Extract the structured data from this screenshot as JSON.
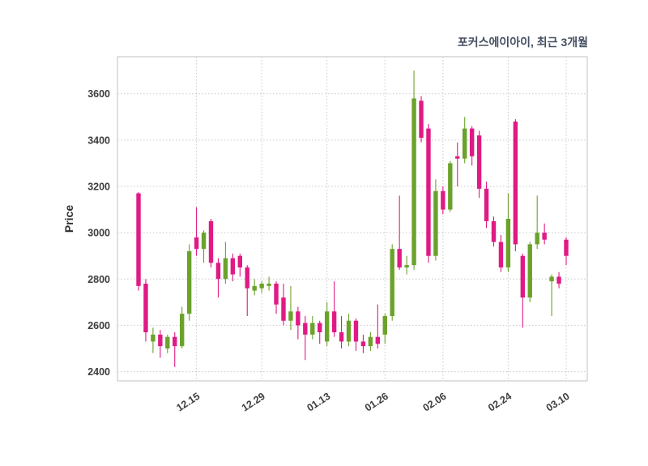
{
  "header": {
    "title": "포커스에이아이, 최근 3개월"
  },
  "chart_data": {
    "type": "candlestick",
    "title": "포커스에이아이, 최근 3개월",
    "xlabel": "",
    "ylabel": "Price",
    "ylim": [
      2360,
      3760
    ],
    "yticks": [
      2400,
      2600,
      2800,
      3000,
      3200,
      3400,
      3600
    ],
    "xtick_labels": [
      "12.15",
      "12.29",
      "01.13",
      "01.26",
      "02.06",
      "02.24",
      "03.10"
    ],
    "grid": true,
    "legend": "none",
    "colors": {
      "up": "#6ba22b",
      "down": "#e01a84",
      "grid": "#c9c9c9",
      "border": "#cccccc",
      "title": "#454f63",
      "tick": "#3d3d3d",
      "ylabel": "#2e2e2e",
      "background": "#ffffff"
    },
    "candles": [
      [
        "12.03",
        3170,
        3175,
        2750,
        2770
      ],
      [
        "12.04",
        2780,
        2800,
        2530,
        2570
      ],
      [
        "12.05",
        2530,
        2590,
        2480,
        2560
      ],
      [
        "12.08",
        2560,
        2580,
        2460,
        2510
      ],
      [
        "12.09",
        2500,
        2560,
        2480,
        2550
      ],
      [
        "12.10",
        2550,
        2570,
        2420,
        2510
      ],
      [
        "12.11",
        2510,
        2680,
        2500,
        2650
      ],
      [
        "12.12",
        2650,
        2950,
        2620,
        2920
      ],
      [
        "12.15",
        2980,
        3110,
        2900,
        2930
      ],
      [
        "12.16",
        2930,
        3010,
        2870,
        3000
      ],
      [
        "12.17",
        3050,
        3060,
        2850,
        2870
      ],
      [
        "12.18",
        2870,
        2890,
        2720,
        2800
      ],
      [
        "12.19",
        2800,
        2960,
        2780,
        2890
      ],
      [
        "12.22",
        2890,
        2910,
        2790,
        2820
      ],
      [
        "12.23",
        2900,
        2910,
        2810,
        2850
      ],
      [
        "12.24",
        2850,
        2860,
        2640,
        2760
      ],
      [
        "12.26",
        2750,
        2800,
        2730,
        2770
      ],
      [
        "12.29",
        2760,
        2790,
        2740,
        2780
      ],
      [
        "12.30",
        2770,
        2810,
        2750,
        2780
      ],
      [
        "01.02",
        2780,
        2790,
        2650,
        2690
      ],
      [
        "01.05",
        2720,
        2780,
        2600,
        2620
      ],
      [
        "01.06",
        2620,
        2770,
        2580,
        2660
      ],
      [
        "01.07",
        2660,
        2680,
        2540,
        2600
      ],
      [
        "01.08",
        2610,
        2640,
        2450,
        2560
      ],
      [
        "01.09",
        2560,
        2640,
        2540,
        2610
      ],
      [
        "01.12",
        2610,
        2620,
        2520,
        2570
      ],
      [
        "01.13",
        2530,
        2700,
        2510,
        2660
      ],
      [
        "01.14",
        2660,
        2790,
        2550,
        2570
      ],
      [
        "01.15",
        2570,
        2640,
        2500,
        2530
      ],
      [
        "01.19",
        2530,
        2650,
        2510,
        2620
      ],
      [
        "01.20",
        2620,
        2630,
        2490,
        2530
      ],
      [
        "01.21",
        2530,
        2560,
        2480,
        2510
      ],
      [
        "01.22",
        2510,
        2570,
        2490,
        2550
      ],
      [
        "01.23",
        2550,
        2690,
        2500,
        2520
      ],
      [
        "01.26",
        2560,
        2650,
        2520,
        2640
      ],
      [
        "01.27",
        2640,
        2950,
        2620,
        2930
      ],
      [
        "01.28",
        2930,
        3160,
        2840,
        2850
      ],
      [
        "01.29",
        2850,
        2900,
        2820,
        2860
      ],
      [
        "01.30",
        2860,
        3700,
        2840,
        3580
      ],
      [
        "02.02",
        3570,
        3590,
        3390,
        3410
      ],
      [
        "02.03",
        3450,
        3470,
        2870,
        2900
      ],
      [
        "02.04",
        2900,
        3230,
        2880,
        3180
      ],
      [
        "02.06",
        3180,
        3200,
        3080,
        3100
      ],
      [
        "02.09",
        3100,
        3310,
        3090,
        3300
      ],
      [
        "02.10",
        3330,
        3390,
        3200,
        3320
      ],
      [
        "02.11",
        3320,
        3500,
        3300,
        3450
      ],
      [
        "02.12",
        3450,
        3460,
        3290,
        3330
      ],
      [
        "02.13",
        3420,
        3440,
        3150,
        3190
      ],
      [
        "02.16",
        3190,
        3220,
        3020,
        3050
      ],
      [
        "02.17",
        3050,
        3070,
        2940,
        2960
      ],
      [
        "02.23",
        2960,
        2990,
        2830,
        2850
      ],
      [
        "02.24",
        2850,
        3170,
        2830,
        3060
      ],
      [
        "02.25",
        3480,
        3490,
        2920,
        2950
      ],
      [
        "02.26",
        2900,
        2910,
        2590,
        2720
      ],
      [
        "02.27",
        2720,
        2960,
        2700,
        2950
      ],
      [
        "03.03",
        2950,
        3160,
        2930,
        3000
      ],
      [
        "03.04",
        3000,
        3040,
        2950,
        2970
      ],
      [
        "03.05",
        2790,
        2820,
        2640,
        2810
      ],
      [
        "03.06",
        2810,
        2830,
        2760,
        2780
      ],
      [
        "03.10",
        2970,
        2980,
        2860,
        2900
      ]
    ]
  }
}
